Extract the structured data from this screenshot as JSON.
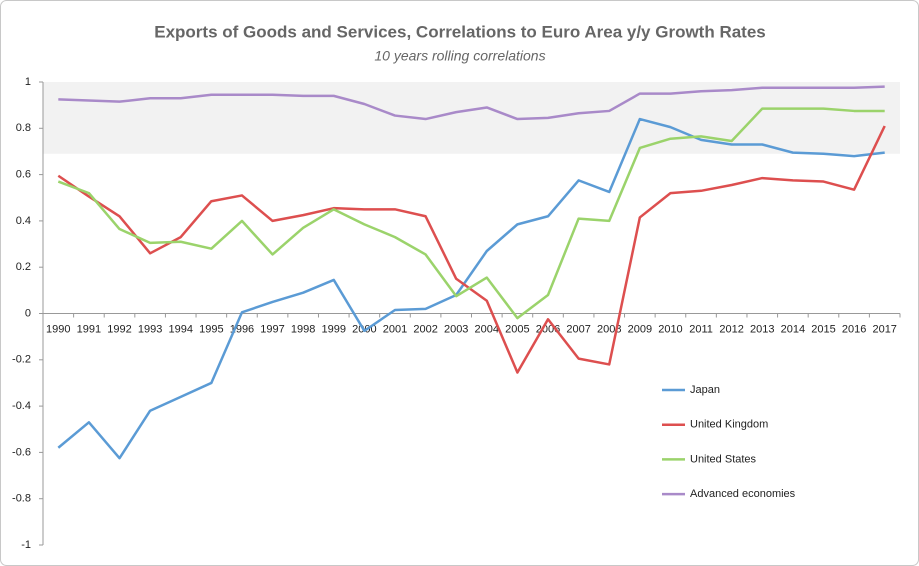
{
  "chart_data": {
    "type": "line",
    "title": "Exports of Goods and Services, Correlations to Euro Area y/y Growth Rates",
    "subtitle": "10 years rolling correlations",
    "categories": [
      "1990",
      "1991",
      "1992",
      "1993",
      "1994",
      "1995",
      "1996",
      "1997",
      "1998",
      "1999",
      "2000",
      "2001",
      "2002",
      "2003",
      "2004",
      "2005",
      "2006",
      "2007",
      "2008",
      "2009",
      "2010",
      "2011",
      "2012",
      "2013",
      "2014",
      "2015",
      "2016",
      "2017"
    ],
    "series": [
      {
        "name": "Japan",
        "color": "#5b9bd5",
        "values": [
          -0.58,
          -0.47,
          -0.625,
          -0.42,
          -0.36,
          -0.3,
          0.005,
          0.05,
          0.09,
          0.145,
          -0.075,
          0.015,
          0.02,
          0.08,
          0.27,
          0.385,
          0.42,
          0.575,
          0.525,
          0.84,
          0.805,
          0.75,
          0.73,
          0.73,
          0.695,
          0.69,
          0.68,
          0.695
        ]
      },
      {
        "name": "United Kingdom",
        "color": "#dd4f4f",
        "values": [
          0.595,
          0.505,
          0.42,
          0.26,
          0.33,
          0.485,
          0.51,
          0.4,
          0.425,
          0.455,
          0.45,
          0.45,
          0.42,
          0.15,
          0.055,
          -0.255,
          -0.025,
          -0.195,
          -0.22,
          0.415,
          0.52,
          0.53,
          0.555,
          0.585,
          0.575,
          0.57,
          0.535,
          0.81
        ]
      },
      {
        "name": "United States",
        "color": "#9bd36b",
        "values": [
          0.57,
          0.52,
          0.365,
          0.305,
          0.31,
          0.28,
          0.4,
          0.255,
          0.37,
          0.45,
          0.385,
          0.33,
          0.255,
          0.075,
          0.155,
          -0.02,
          0.08,
          0.41,
          0.4,
          0.715,
          0.755,
          0.765,
          0.745,
          0.885,
          0.885,
          0.885,
          0.875,
          0.875
        ]
      },
      {
        "name": "Advanced economies",
        "color": "#a98ac9",
        "values": [
          0.925,
          0.92,
          0.915,
          0.93,
          0.93,
          0.945,
          0.945,
          0.945,
          0.94,
          0.94,
          0.905,
          0.855,
          0.84,
          0.87,
          0.89,
          0.84,
          0.845,
          0.865,
          0.875,
          0.95,
          0.95,
          0.96,
          0.965,
          0.975,
          0.975,
          0.975,
          0.975,
          0.98
        ]
      }
    ],
    "ylim": [
      -1,
      1
    ],
    "yticks": [
      -1,
      -0.8,
      -0.6,
      -0.4,
      -0.2,
      0,
      0.2,
      0.4,
      0.6,
      0.8,
      1
    ],
    "shaded_band": [
      0.69,
      1
    ],
    "grid": false,
    "legend_position": "right"
  }
}
